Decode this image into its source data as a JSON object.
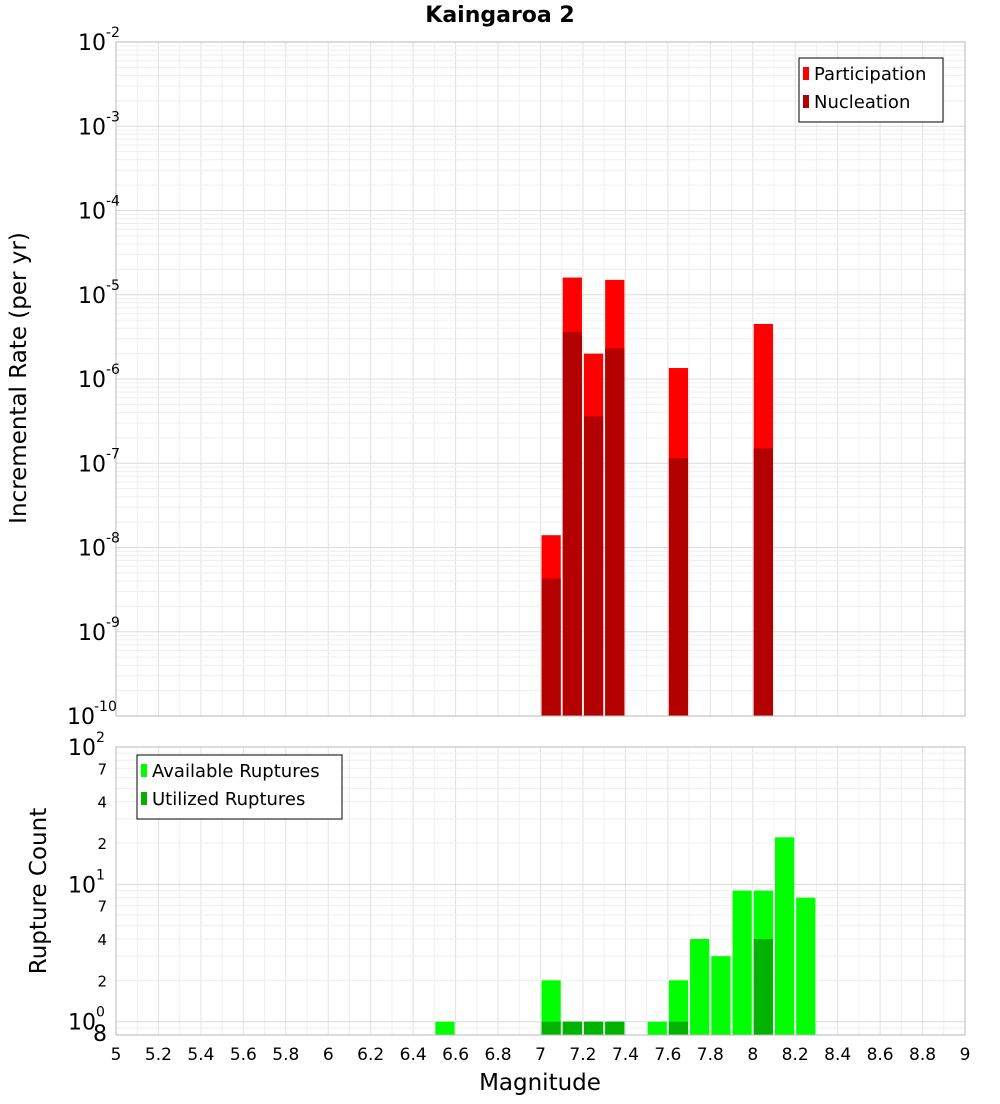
{
  "chart_data": [
    {
      "type": "bar",
      "title": "Kaingaroa 2",
      "xlabel": "",
      "ylabel": "Incremental Rate (per yr)",
      "yscale": "log",
      "ylim": [
        1e-10,
        0.01
      ],
      "xlim": [
        5,
        9
      ],
      "bin_width": 0.1,
      "y_tick_labels": [
        {
          "value": 1e-10,
          "base": "10",
          "exp": "-10"
        },
        {
          "value": 1e-09,
          "base": "10",
          "exp": "-9"
        },
        {
          "value": 1e-08,
          "base": "10",
          "exp": "-8"
        },
        {
          "value": 1e-07,
          "base": "10",
          "exp": "-7"
        },
        {
          "value": 1e-06,
          "base": "10",
          "exp": "-6"
        },
        {
          "value": 1e-05,
          "base": "10",
          "exp": "-5"
        },
        {
          "value": 0.0001,
          "base": "10",
          "exp": "-4"
        },
        {
          "value": 0.001,
          "base": "10",
          "exp": "-3"
        },
        {
          "value": 0.01,
          "base": "10",
          "exp": "-2"
        }
      ],
      "legend": {
        "position": "top-right",
        "entries": [
          "Participation",
          "Nucleation"
        ]
      },
      "grid": true,
      "series": [
        {
          "name": "Participation",
          "color": "#ff0000",
          "x": [
            7.05,
            7.15,
            7.25,
            7.35,
            7.65,
            8.05
          ],
          "values": [
            1.4e-08,
            1.6e-05,
            2e-06,
            1.5e-05,
            1.35e-06,
            4.5e-06
          ]
        },
        {
          "name": "Nucleation",
          "color": "#b30000",
          "x": [
            7.05,
            7.15,
            7.25,
            7.35,
            7.65,
            8.05
          ],
          "values": [
            4.3e-09,
            3.6e-06,
            3.6e-07,
            2.3e-06,
            1.15e-07,
            1.5e-07
          ]
        }
      ]
    },
    {
      "type": "bar",
      "title": "",
      "xlabel": "Magnitude",
      "ylabel": "Rupture Count",
      "yscale": "log",
      "ylim": [
        0.8,
        100
      ],
      "xlim": [
        5,
        9
      ],
      "bin_width": 0.1,
      "x_tick_labels": [
        "5",
        "5.2",
        "5.4",
        "5.6",
        "5.8",
        "6",
        "6.2",
        "6.4",
        "6.6",
        "6.8",
        "7",
        "7.2",
        "7.4",
        "7.6",
        "7.8",
        "8",
        "8.2",
        "8.4",
        "8.6",
        "8.8",
        "9"
      ],
      "y_major_tick_labels": [
        {
          "value": 1,
          "base": "10",
          "exp": "0"
        },
        {
          "value": 10,
          "base": "10",
          "exp": "1"
        },
        {
          "value": 100,
          "base": "10",
          "exp": "2"
        }
      ],
      "y_minor_tick_labels": [
        {
          "value": 0.8,
          "label": "8"
        },
        {
          "value": 2,
          "label": "2"
        },
        {
          "value": 4,
          "label": "4"
        },
        {
          "value": 7,
          "label": "7"
        },
        {
          "value": 20,
          "label": "2"
        },
        {
          "value": 40,
          "label": "4"
        },
        {
          "value": 70,
          "label": "7"
        }
      ],
      "legend": {
        "position": "top-left",
        "entries": [
          "Available Ruptures",
          "Utilized Ruptures"
        ]
      },
      "grid": true,
      "series": [
        {
          "name": "Available Ruptures",
          "color": "#00ff00",
          "x": [
            6.55,
            7.05,
            7.15,
            7.25,
            7.35,
            7.55,
            7.65,
            7.75,
            7.85,
            7.95,
            8.05,
            8.15,
            8.25
          ],
          "values": [
            1,
            2,
            1,
            1,
            1,
            1,
            2,
            4,
            3,
            9,
            9,
            22,
            8
          ]
        },
        {
          "name": "Utilized Ruptures",
          "color": "#00b300",
          "x": [
            7.05,
            7.15,
            7.25,
            7.35,
            7.65,
            8.05
          ],
          "values": [
            1,
            1,
            1,
            1,
            1,
            4
          ]
        }
      ]
    }
  ]
}
